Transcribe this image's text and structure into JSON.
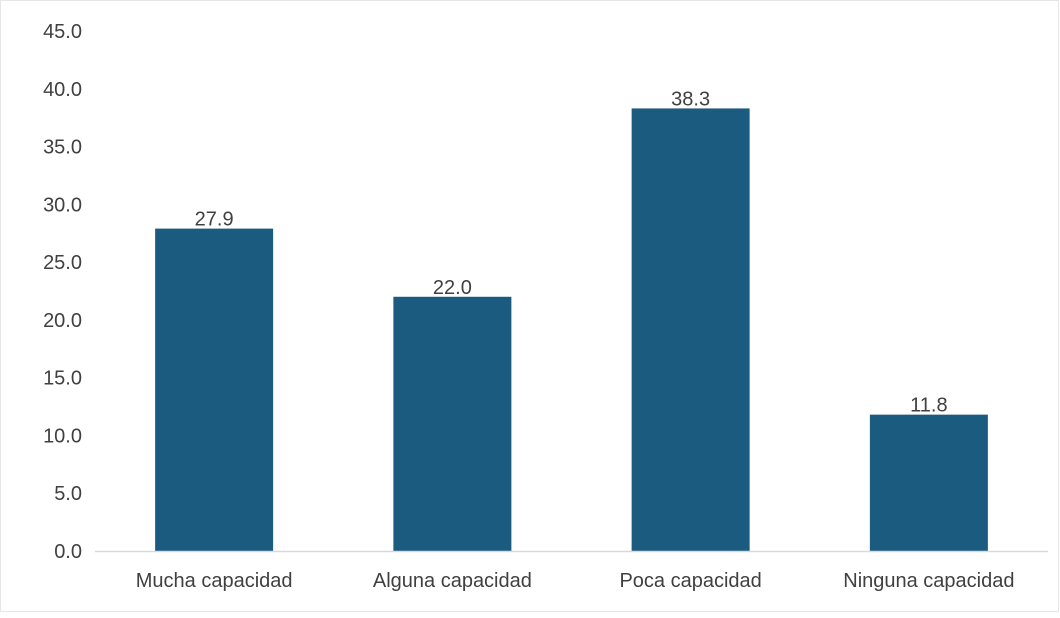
{
  "chart_data": {
    "type": "bar",
    "categories": [
      "Mucha capacidad",
      "Alguna capacidad",
      "Poca capacidad",
      "Ninguna capacidad"
    ],
    "values": [
      27.9,
      22.0,
      38.3,
      11.8
    ],
    "value_labels": [
      "27.9",
      "22.0",
      "38.3",
      "11.8"
    ],
    "ylim": [
      0,
      45
    ],
    "yticks": [
      "0.0",
      "5.0",
      "10.0",
      "15.0",
      "20.0",
      "25.0",
      "30.0",
      "35.0",
      "40.0",
      "45.0"
    ],
    "grid": false,
    "legend": "none",
    "title": "",
    "xlabel": "",
    "ylabel": ""
  },
  "colors": {
    "bar": "#1b5b80",
    "axis_line": "#d9d9d9",
    "text": "#404040",
    "frame": "#d9d9d9"
  }
}
